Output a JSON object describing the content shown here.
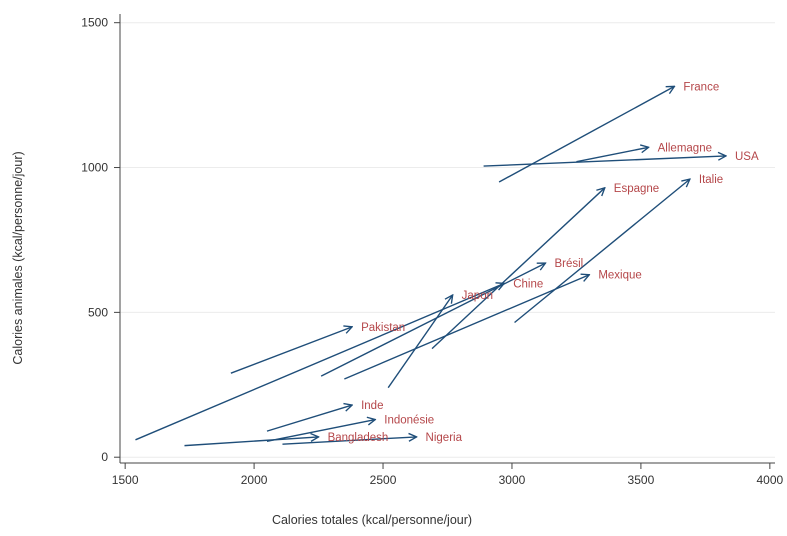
{
  "chart_data": {
    "type": "scatter",
    "subtype": "arrow-connected-scatter",
    "title": "",
    "xlabel": "Calories totales (kcal/personne/jour)",
    "ylabel": "Calories animales (kcal/personne/jour)",
    "xlim": [
      1480,
      4020
    ],
    "ylim": [
      -20,
      1530
    ],
    "xticks": [
      1500,
      2000,
      2500,
      3000,
      3500,
      4000
    ],
    "yticks": [
      0,
      500,
      1000,
      1500
    ],
    "grid": "horizontal",
    "colors": {
      "arrow": "#1f4e79",
      "label": "#b5474a",
      "axis": "#444444",
      "grid": "#ececec"
    },
    "series": [
      {
        "name": "France",
        "start": [
          2950,
          950
        ],
        "end": [
          3630,
          1280
        ]
      },
      {
        "name": "USA",
        "start": [
          2890,
          1005
        ],
        "end": [
          3830,
          1040
        ]
      },
      {
        "name": "Allemagne",
        "start": [
          3250,
          1020
        ],
        "end": [
          3530,
          1070
        ]
      },
      {
        "name": "Italie",
        "start": [
          3010,
          465
        ],
        "end": [
          3690,
          960
        ]
      },
      {
        "name": "Espagne",
        "start": [
          2690,
          375
        ],
        "end": [
          3360,
          930
        ]
      },
      {
        "name": "Brésil",
        "start": [
          2260,
          280
        ],
        "end": [
          3130,
          670
        ]
      },
      {
        "name": "Mexique",
        "start": [
          2350,
          270
        ],
        "end": [
          3300,
          630
        ]
      },
      {
        "name": "Chine",
        "start": [
          1540,
          60
        ],
        "end": [
          2970,
          600
        ]
      },
      {
        "name": "Japon",
        "start": [
          2520,
          240
        ],
        "end": [
          2770,
          560
        ]
      },
      {
        "name": "Pakistan",
        "start": [
          1910,
          290
        ],
        "end": [
          2380,
          450
        ]
      },
      {
        "name": "Inde",
        "start": [
          2050,
          90
        ],
        "end": [
          2380,
          180
        ]
      },
      {
        "name": "Indonésie",
        "start": [
          2050,
          55
        ],
        "end": [
          2470,
          130
        ]
      },
      {
        "name": "Bangladesh",
        "start": [
          1730,
          40
        ],
        "end": [
          2250,
          70
        ]
      },
      {
        "name": "Nigeria",
        "start": [
          2110,
          45
        ],
        "end": [
          2630,
          70
        ]
      }
    ]
  }
}
